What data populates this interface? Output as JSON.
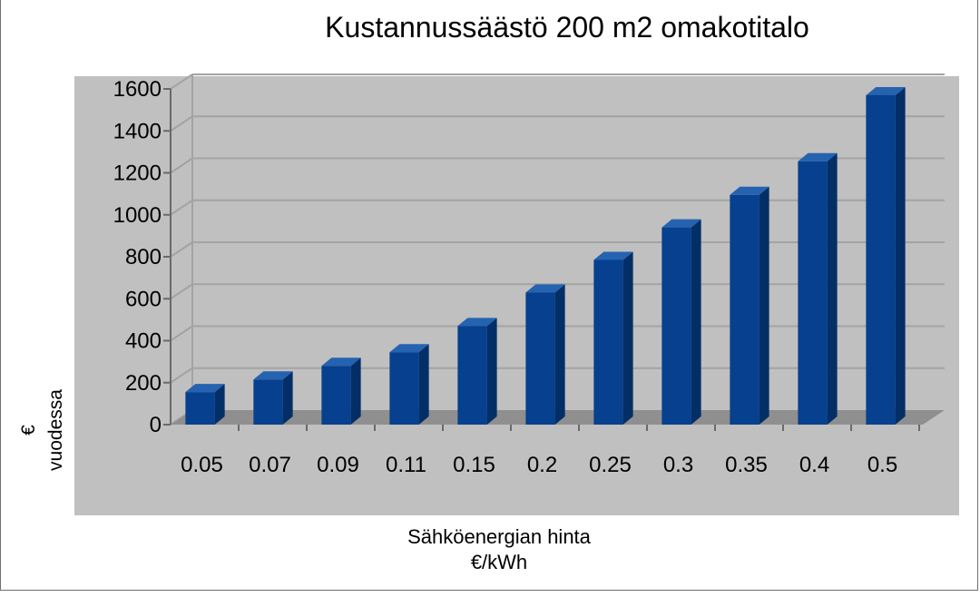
{
  "chart_data": {
    "type": "bar",
    "title": "Kustannussäästö 200 m2 omakotitalo",
    "xlabel": "Sähköenergian hinta\n€/kWh",
    "ylabel": "€\nvuodessa",
    "categories": [
      "0.05",
      "0.07",
      "0.09",
      "0.11",
      "0.15",
      "0.2",
      "0.25",
      "0.3",
      "0.35",
      "0.4",
      "0.5"
    ],
    "values": [
      155,
      215,
      280,
      345,
      470,
      630,
      785,
      940,
      1095,
      1255,
      1570
    ],
    "ylim": [
      0,
      1600
    ],
    "yticks": [
      0,
      200,
      400,
      600,
      800,
      1000,
      1200,
      1400,
      1600
    ],
    "grid": true,
    "legend": "none",
    "colors": {
      "bar_front": "#06408e",
      "bar_side": "#042f66",
      "bar_top": "#2563b0",
      "plot_background": "#c0c0c0",
      "floor": "#8f8f8f",
      "gridline": "#a3a3a3"
    }
  }
}
